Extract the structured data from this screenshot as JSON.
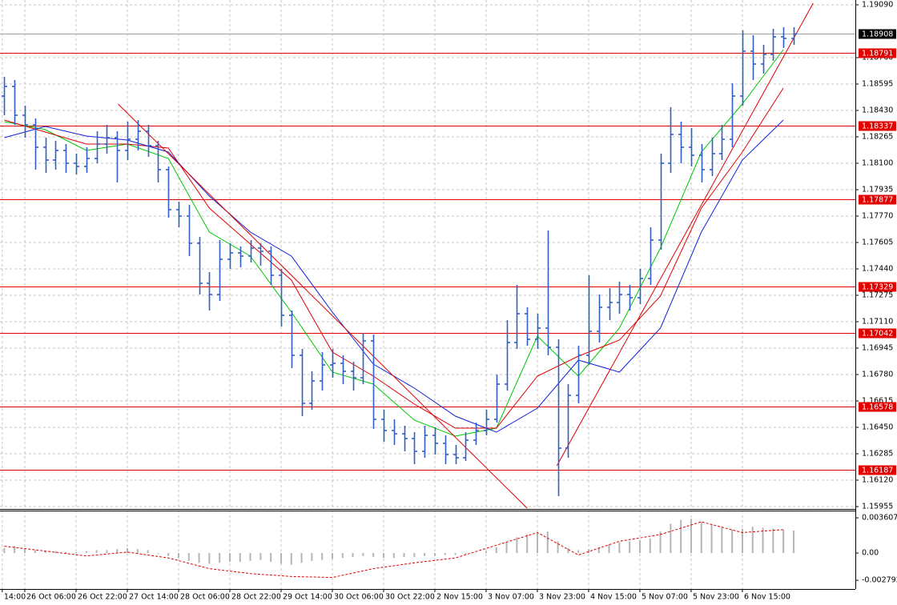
{
  "chart_data": {
    "type": "ohlc",
    "xlim": [
      -2.42,
      81.02
    ],
    "xticks": [
      {
        "value": -2.2,
        "label": "14:00"
      },
      {
        "value": 0,
        "label": "26 Oct 06:00"
      },
      {
        "value": 5,
        "label": "26 Oct 22:00"
      },
      {
        "value": 10,
        "label": "27 Oct 14:00"
      },
      {
        "value": 15,
        "label": "28 Oct 06:00"
      },
      {
        "value": 20,
        "label": "28 Oct 22:00"
      },
      {
        "value": 25,
        "label": "29 Oct 14:00"
      },
      {
        "value": 30,
        "label": "30 Oct 06:00"
      },
      {
        "value": 35,
        "label": "30 Oct 22:00"
      },
      {
        "value": 40,
        "label": "2 Nov 15:00"
      },
      {
        "value": 45,
        "label": "3 Nov 07:00"
      },
      {
        "value": 50,
        "label": "3 Nov 23:00"
      },
      {
        "value": 55,
        "label": "4 Nov 15:00"
      },
      {
        "value": 60,
        "label": "5 Nov 07:00"
      },
      {
        "value": 65,
        "label": "5 Nov 23:00"
      },
      {
        "value": 70,
        "label": "6 Nov 15:00"
      }
    ],
    "ylim": [
      1.15955,
      1.1909
    ],
    "yticks": [
      {
        "value": 1.1909,
        "label": "1.19090"
      },
      {
        "value": 1.1876,
        "label": "1.18760"
      },
      1.18595,
      {
        "value": 1.1843,
        "label": "1.18430"
      },
      1.18265,
      {
        "value": 1.181,
        "label": "1.18100"
      },
      1.17935,
      {
        "value": 1.1777,
        "label": "1.17770"
      },
      1.17605,
      {
        "value": 1.1744,
        "label": "1.17440"
      },
      1.17275,
      {
        "value": 1.1711,
        "label": "1.17110"
      },
      1.16945,
      {
        "value": 1.1678,
        "label": "1.16780"
      },
      1.16615,
      {
        "value": 1.1645,
        "label": "1.16450"
      },
      1.16285,
      {
        "value": 1.1612,
        "label": "1.16120"
      },
      1.15955
    ],
    "grid": true,
    "color": "#2f5fc8",
    "x": [
      -2,
      -1,
      0,
      1,
      2,
      3,
      4,
      5,
      6,
      7,
      8,
      9,
      10,
      11,
      12,
      13,
      14,
      15,
      16,
      17,
      18,
      19,
      20,
      21,
      22,
      23,
      24,
      25,
      26,
      27,
      28,
      29,
      30,
      31,
      32,
      33,
      34,
      35,
      36,
      37,
      38,
      39,
      40,
      41,
      42,
      43,
      44,
      45,
      46,
      47,
      48,
      49,
      50,
      51,
      52,
      53,
      54,
      55,
      56,
      57,
      58,
      59,
      60,
      61,
      62,
      63,
      64,
      65,
      66,
      67,
      68,
      69,
      70,
      71,
      72,
      73,
      74,
      75
    ],
    "ohlc": [
      [
        1.1852,
        1.1864,
        1.184,
        1.1858
      ],
      [
        1.1858,
        1.1862,
        1.1834,
        1.184
      ],
      [
        1.184,
        1.1846,
        1.1826,
        1.1834
      ],
      [
        1.1834,
        1.1838,
        1.1806,
        1.182
      ],
      [
        1.182,
        1.1826,
        1.1804,
        1.1812
      ],
      [
        1.1812,
        1.1824,
        1.1806,
        1.1818
      ],
      [
        1.1818,
        1.1822,
        1.1804,
        1.181
      ],
      [
        1.181,
        1.1816,
        1.1803,
        1.1808
      ],
      [
        1.1808,
        1.182,
        1.1804,
        1.1813
      ],
      [
        1.1813,
        1.183,
        1.181,
        1.1822
      ],
      [
        1.1822,
        1.1834,
        1.1816,
        1.1826
      ],
      [
        1.1826,
        1.183,
        1.1798,
        1.1818
      ],
      [
        1.1818,
        1.1836,
        1.1812,
        1.1825
      ],
      [
        1.1825,
        1.1837,
        1.1818,
        1.183
      ],
      [
        1.183,
        1.1834,
        1.1814,
        1.1821
      ],
      [
        1.1821,
        1.1824,
        1.1798,
        1.1806
      ],
      [
        1.1806,
        1.1808,
        1.1776,
        1.1781
      ],
      [
        1.1781,
        1.1786,
        1.177,
        1.1777
      ],
      [
        1.1777,
        1.1784,
        1.1752,
        1.176
      ],
      [
        1.176,
        1.1764,
        1.1728,
        1.1735
      ],
      [
        1.1735,
        1.1742,
        1.1718,
        1.1728
      ],
      [
        1.1728,
        1.1762,
        1.1724,
        1.175
      ],
      [
        1.175,
        1.176,
        1.1744,
        1.1754
      ],
      [
        1.1754,
        1.1758,
        1.1745,
        1.1752
      ],
      [
        1.1752,
        1.1762,
        1.1748,
        1.1757
      ],
      [
        1.1757,
        1.176,
        1.1746,
        1.1755
      ],
      [
        1.1755,
        1.1758,
        1.1734,
        1.174
      ],
      [
        1.174,
        1.1744,
        1.1708,
        1.1715
      ],
      [
        1.1715,
        1.1718,
        1.1682,
        1.169
      ],
      [
        1.169,
        1.1694,
        1.1652,
        1.166
      ],
      [
        1.166,
        1.168,
        1.1656,
        1.1674
      ],
      [
        1.1674,
        1.1692,
        1.1668,
        1.1684
      ],
      [
        1.1684,
        1.1694,
        1.1676,
        1.1685
      ],
      [
        1.1685,
        1.169,
        1.1672,
        1.168
      ],
      [
        1.168,
        1.1686,
        1.1668,
        1.1676
      ],
      [
        1.1676,
        1.1704,
        1.1672,
        1.1699
      ],
      [
        1.1699,
        1.1703,
        1.1644,
        1.165
      ],
      [
        1.165,
        1.1656,
        1.1636,
        1.1643
      ],
      [
        1.1643,
        1.165,
        1.1634,
        1.1641
      ],
      [
        1.1641,
        1.1646,
        1.163,
        1.1638
      ],
      [
        1.1638,
        1.1642,
        1.1622,
        1.163
      ],
      [
        1.163,
        1.1646,
        1.1626,
        1.164
      ],
      [
        1.164,
        1.1645,
        1.1628,
        1.1635
      ],
      [
        1.1635,
        1.164,
        1.1622,
        1.1628
      ],
      [
        1.1628,
        1.1634,
        1.1622,
        1.1626
      ],
      [
        1.1626,
        1.1642,
        1.1624,
        1.1637
      ],
      [
        1.1637,
        1.1648,
        1.1634,
        1.1643
      ],
      [
        1.1643,
        1.1656,
        1.164,
        1.165
      ],
      [
        1.165,
        1.1678,
        1.1648,
        1.1672
      ],
      [
        1.1672,
        1.1712,
        1.1668,
        1.1698
      ],
      [
        1.1698,
        1.1734,
        1.1694,
        1.1716
      ],
      [
        1.1716,
        1.172,
        1.1696,
        1.17
      ],
      [
        1.17,
        1.1716,
        1.1694,
        1.1707
      ],
      [
        1.1707,
        1.1768,
        1.169,
        1.1695
      ],
      [
        1.1695,
        1.17,
        1.1602,
        1.1632
      ],
      [
        1.1632,
        1.1672,
        1.1626,
        1.1665
      ],
      [
        1.1665,
        1.1696,
        1.166,
        1.169
      ],
      [
        1.169,
        1.174,
        1.1684,
        1.1705
      ],
      [
        1.1705,
        1.1728,
        1.1698,
        1.172
      ],
      [
        1.172,
        1.1732,
        1.1712,
        1.1723
      ],
      [
        1.1723,
        1.1736,
        1.1716,
        1.1728
      ],
      [
        1.1728,
        1.1734,
        1.1718,
        1.1726
      ],
      [
        1.1726,
        1.1744,
        1.1722,
        1.1738
      ],
      [
        1.1738,
        1.177,
        1.1734,
        1.1762
      ],
      [
        1.1762,
        1.1816,
        1.1756,
        1.181
      ],
      [
        1.181,
        1.1845,
        1.1804,
        1.1828
      ],
      [
        1.1828,
        1.1836,
        1.181,
        1.182
      ],
      [
        1.182,
        1.1832,
        1.1808,
        1.1815
      ],
      [
        1.1815,
        1.1822,
        1.1798,
        1.1806
      ],
      [
        1.1806,
        1.1826,
        1.1802,
        1.1816
      ],
      [
        1.1816,
        1.1834,
        1.1812,
        1.1825
      ],
      [
        1.1825,
        1.186,
        1.182,
        1.1852
      ],
      [
        1.1852,
        1.1893,
        1.1846,
        1.188
      ],
      [
        1.188,
        1.189,
        1.1862,
        1.1872
      ],
      [
        1.1872,
        1.1884,
        1.1866,
        1.1878
      ],
      [
        1.1878,
        1.1894,
        1.1874,
        1.1889
      ],
      [
        1.1889,
        1.1895,
        1.1882,
        1.1888
      ],
      [
        1.1888,
        1.1895,
        1.1884,
        1.18908
      ]
    ],
    "series": [
      {
        "color": "#00c800",
        "x": [
          -2,
          2,
          6,
          10,
          14,
          18,
          22,
          26,
          30,
          34,
          38,
          42,
          46,
          50,
          54,
          58,
          62,
          66,
          70,
          74
        ],
        "values": [
          1.1836,
          1.1831,
          1.1818,
          1.1822,
          1.1813,
          1.1767,
          1.1752,
          1.1717,
          1.16795,
          1.1672,
          1.16495,
          1.16395,
          1.16445,
          1.1702,
          1.1677,
          1.1707,
          1.1757,
          1.1817,
          1.1847,
          1.1881
        ]
      },
      {
        "color": "#e00000",
        "x": [
          -2,
          2,
          6,
          10,
          14,
          18,
          22,
          26,
          30,
          34,
          38,
          42,
          46,
          50,
          54,
          58,
          62,
          66,
          70,
          74
        ],
        "values": [
          1.1837,
          1.18295,
          1.1822,
          1.1822,
          1.18195,
          1.1782,
          1.17595,
          1.1737,
          1.1692,
          1.1677,
          1.16595,
          1.16445,
          1.16445,
          1.1677,
          1.16895,
          1.16995,
          1.1727,
          1.1782,
          1.1817,
          1.1857
        ]
      },
      {
        "color": "#1020d8",
        "x": [
          -2,
          2,
          6,
          10,
          14,
          18,
          22,
          26,
          30,
          34,
          38,
          42,
          46,
          50,
          54,
          58,
          62,
          66,
          70,
          74
        ],
        "values": [
          1.1826,
          1.1833,
          1.1827,
          1.18245,
          1.1817,
          1.17895,
          1.1767,
          1.1752,
          1.1717,
          1.16845,
          1.16695,
          1.1652,
          1.1642,
          1.1657,
          1.1687,
          1.16795,
          1.1707,
          1.1767,
          1.1812,
          1.1837
        ]
      }
    ],
    "trendlines": [
      {
        "color": "#e00000",
        "x": [
          9.1,
          49
        ],
        "y": [
          1.1847,
          1.15945
        ]
      },
      {
        "color": "#e00000",
        "x": [
          51.9,
          76.9
        ],
        "y": [
          1.1621,
          1.191
        ]
      }
    ],
    "levels": [
      1.18791,
      1.18337,
      1.17877,
      1.17329,
      1.17042,
      1.16578,
      1.16187
    ],
    "level_color": "#e00000",
    "last_price": 1.18908,
    "indicator": {
      "ylim": [
        -0.0036,
        0.00435
      ],
      "yticks": [
        0.003607,
        {
          "value": 0,
          "label": "0.00"
        },
        -0.002792
      ],
      "histogram_color": "#b4b4b4",
      "histogram": [
        0.0005,
        0.0007,
        0.0004,
        0.0003,
        0.0002,
        0.0002,
        0.0001,
        0.0001,
        0.0002,
        0.0003,
        0.0003,
        0.0004,
        0.0005,
        0.0004,
        0.0003,
        -0.0001,
        -0.0003,
        -0.0005,
        -0.0008,
        -0.001,
        -0.0011,
        -0.001,
        -0.0009,
        -0.0009,
        -0.0008,
        -0.0007,
        -0.0009,
        -0.0011,
        -0.0012,
        -0.001,
        -0.0008,
        -0.0007,
        -0.0006,
        -0.0005,
        -0.0004,
        -0.0003,
        -0.0004,
        -0.0005,
        -0.0005,
        -0.0004,
        -0.0004,
        -0.0003,
        -0.0003,
        -0.0002,
        -0.0002,
        -0.0001,
        0,
        0.0002,
        0.0006,
        0.0011,
        0.0016,
        0.0019,
        0.0021,
        0.0022,
        0.0012,
        0.0005,
        0.0003,
        0.0004,
        0.0006,
        0.0009,
        0.0011,
        0.0012,
        0.0013,
        0.0015,
        0.0022,
        0.003,
        0.0034,
        0.0035,
        0.0032,
        0.0029,
        0.0026,
        0.0024,
        0.0025,
        0.0027,
        0.0026,
        0.0025,
        0.0024,
        0.0023
      ],
      "signal": {
        "color": "#e00000",
        "x": [
          -2,
          2,
          6,
          10,
          14,
          18,
          22,
          26,
          30,
          34,
          38,
          42,
          46,
          50,
          54,
          58,
          62,
          66,
          70,
          74
        ],
        "values": [
          0.0007,
          0.0002,
          -0.0003,
          0.0001,
          -0.0005,
          -0.0016,
          -0.0021,
          -0.0024,
          -0.0025,
          -0.0016,
          -0.001,
          -0.0005,
          0.0008,
          0.0021,
          -0.0002,
          0.0012,
          0.0019,
          0.0032,
          0.0021,
          0.0024
        ]
      }
    }
  }
}
